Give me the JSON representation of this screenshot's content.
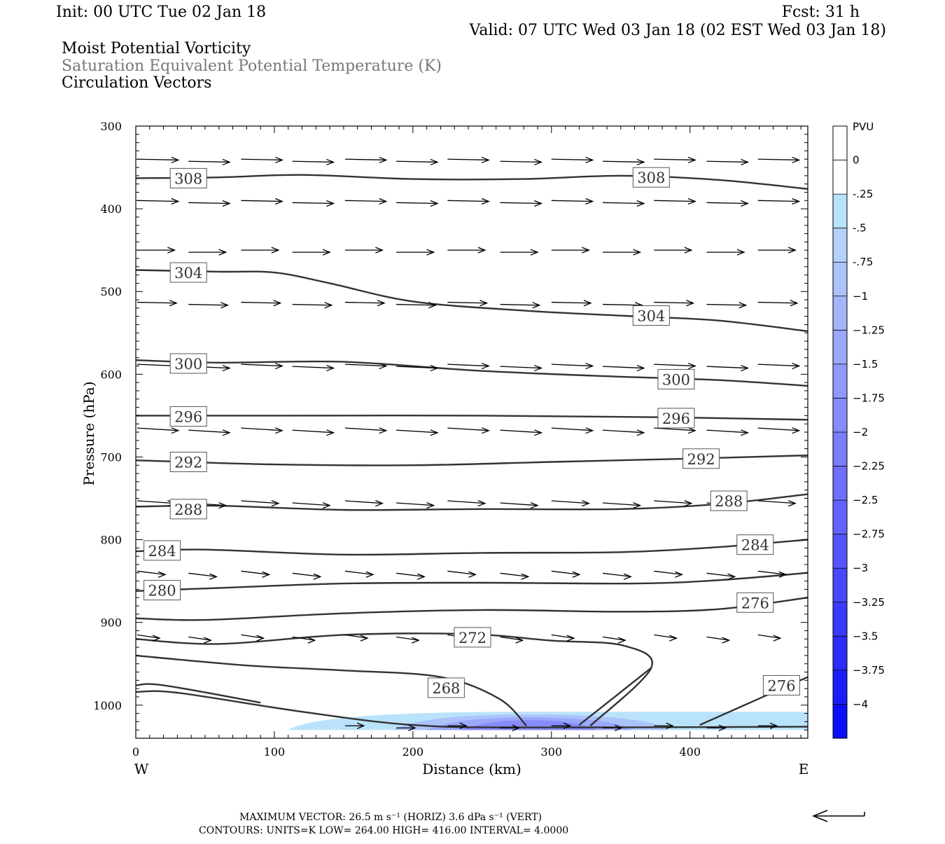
{
  "header": {
    "init": "Init: 00 UTC Tue 02 Jan 18",
    "fcst": "Fcst:   31 h",
    "valid": "Valid: 07 UTC Wed 03 Jan 18 (02 EST Wed 03 Jan 18)",
    "field1": "Moist Potential Vorticity",
    "field2": "Saturation Equivalent Potential Temperature (K)",
    "field3": "Circulation Vectors"
  },
  "footer": {
    "max_vector": "MAXIMUM VECTOR:  26.5 m s⁻¹ (HORIZ)          3.6 dPa s⁻¹ (VERT)",
    "contours": "CONTOURS:  UNITS=K  LOW=   264.00        HIGH=   416.00        INTERVAL=     4.0000"
  },
  "colorbar": {
    "unit": "PVU",
    "labels": [
      "0",
      "-.25",
      "-.5",
      "-.75",
      "−1",
      "−1.25",
      "−1.5",
      "−1.75",
      "−2",
      "−2.25",
      "−2.5",
      "−2.75",
      "−3",
      "−3.25",
      "−3.5",
      "−3.75",
      "−4"
    ],
    "colors": [
      "#ffffff",
      "#ffffff",
      "#b9e3fb",
      "#b4d2fb",
      "#abc2fb",
      "#a3b5fb",
      "#9aa7fb",
      "#9099fb",
      "#878bfb",
      "#7c7dfb",
      "#706efb",
      "#6462fb",
      "#5655fb",
      "#4848fb",
      "#393afb",
      "#2a2cfb",
      "#1a1dfb",
      "#0a0ffb"
    ]
  },
  "chart_data": {
    "type": "cross-section",
    "xlabel": "Distance (km)",
    "ylabel": "Pressure (hPa)",
    "xlim": [
      0,
      485
    ],
    "ylim": [
      1040,
      300
    ],
    "x_ticks": [
      "0",
      "100",
      "200",
      "300",
      "400"
    ],
    "y_ticks": [
      "300",
      "400",
      "500",
      "600",
      "700",
      "800",
      "900",
      "1000"
    ],
    "x_end_labels": {
      "left": "W",
      "right": "E"
    },
    "contours": [
      {
        "value": 308,
        "points": [
          [
            0,
            363
          ],
          [
            60,
            362
          ],
          [
            120,
            359
          ],
          [
            200,
            364
          ],
          [
            280,
            364
          ],
          [
            350,
            360
          ],
          [
            420,
            365
          ],
          [
            485,
            376
          ]
        ]
      },
      {
        "value": 304,
        "points": [
          [
            0,
            474
          ],
          [
            60,
            476
          ],
          [
            100,
            477
          ],
          [
            140,
            490
          ],
          [
            200,
            512
          ],
          [
            280,
            523
          ],
          [
            360,
            530
          ],
          [
            420,
            535
          ],
          [
            485,
            548
          ]
        ]
      },
      {
        "value": 300,
        "points": [
          [
            0,
            583
          ],
          [
            60,
            586
          ],
          [
            150,
            585
          ],
          [
            250,
            596
          ],
          [
            350,
            603
          ],
          [
            420,
            607
          ],
          [
            485,
            614
          ]
        ]
      },
      {
        "value": 296,
        "points": [
          [
            0,
            650
          ],
          [
            100,
            650
          ],
          [
            250,
            650
          ],
          [
            380,
            652
          ],
          [
            485,
            655
          ]
        ]
      },
      {
        "value": 292,
        "points": [
          [
            0,
            704
          ],
          [
            100,
            709
          ],
          [
            200,
            710
          ],
          [
            300,
            706
          ],
          [
            400,
            702
          ],
          [
            485,
            698
          ]
        ]
      },
      {
        "value": 288,
        "points": [
          [
            0,
            760
          ],
          [
            60,
            759
          ],
          [
            150,
            764
          ],
          [
            250,
            763
          ],
          [
            350,
            763
          ],
          [
            420,
            757
          ],
          [
            485,
            745
          ]
        ]
      },
      {
        "value": 284,
        "points": [
          [
            0,
            814
          ],
          [
            50,
            812
          ],
          [
            150,
            818
          ],
          [
            250,
            816
          ],
          [
            350,
            815
          ],
          [
            420,
            809
          ],
          [
            485,
            800
          ]
        ]
      },
      {
        "value": 280,
        "points": [
          [
            0,
            862
          ],
          [
            50,
            859
          ],
          [
            150,
            853
          ],
          [
            250,
            852
          ],
          [
            360,
            853
          ],
          [
            420,
            849
          ],
          [
            485,
            840
          ]
        ]
      },
      {
        "value": 276,
        "points": [
          [
            0,
            895
          ],
          [
            50,
            897
          ],
          [
            150,
            889
          ],
          [
            250,
            885
          ],
          [
            350,
            887
          ],
          [
            420,
            884
          ],
          [
            485,
            870
          ]
        ]
      },
      {
        "value": 272,
        "points": [
          [
            0,
            920
          ],
          [
            60,
            926
          ],
          [
            150,
            915
          ],
          [
            240,
            914
          ],
          [
            300,
            922
          ],
          [
            352,
            928
          ],
          [
            372,
            955
          ],
          [
            328,
            1025
          ]
        ]
      },
      {
        "value": 272,
        "points": [
          [
            372,
            955
          ],
          [
            320,
            1024
          ]
        ]
      },
      {
        "value": 268,
        "points": [
          [
            0,
            940
          ],
          [
            80,
            952
          ],
          [
            150,
            958
          ],
          [
            220,
            966
          ],
          [
            262,
            992
          ],
          [
            282,
            1025
          ]
        ]
      },
      {
        "value": 276,
        "points": [
          [
            407,
            1024
          ],
          [
            450,
            992
          ],
          [
            485,
            966
          ]
        ]
      },
      {
        "value": 264,
        "points": [
          [
            0,
            976
          ],
          [
            20,
            976
          ],
          [
            90,
            997
          ]
        ]
      },
      {
        "value": 264,
        "points": [
          [
            0,
            984
          ],
          [
            30,
            985
          ],
          [
            120,
            1008
          ],
          [
            200,
            1024
          ],
          [
            285,
            1027
          ],
          [
            485,
            1026
          ]
        ]
      }
    ],
    "contour_labels": [
      {
        "text": "308",
        "x": 38,
        "p": 363
      },
      {
        "text": "308",
        "x": 372,
        "p": 362
      },
      {
        "text": "304",
        "x": 38,
        "p": 477
      },
      {
        "text": "304",
        "x": 372,
        "p": 529
      },
      {
        "text": "300",
        "x": 38,
        "p": 587
      },
      {
        "text": "300",
        "x": 390,
        "p": 606
      },
      {
        "text": "296",
        "x": 38,
        "p": 651
      },
      {
        "text": "296",
        "x": 390,
        "p": 653
      },
      {
        "text": "292",
        "x": 38,
        "p": 706
      },
      {
        "text": "292",
        "x": 408,
        "p": 702
      },
      {
        "text": "288",
        "x": 38,
        "p": 763
      },
      {
        "text": "288",
        "x": 428,
        "p": 753
      },
      {
        "text": "284",
        "x": 19,
        "p": 813
      },
      {
        "text": "284",
        "x": 447,
        "p": 806
      },
      {
        "text": "280",
        "x": 19,
        "p": 861
      },
      {
        "text": "276",
        "x": 447,
        "p": 876
      },
      {
        "text": "272",
        "x": 243,
        "p": 918
      },
      {
        "text": "268",
        "x": 224,
        "p": 979
      },
      {
        "text": "276",
        "x": 466,
        "p": 976
      }
    ],
    "vector_rows": [
      {
        "p": 340,
        "xs": [
          0,
          37,
          75,
          112,
          150,
          187,
          224,
          262,
          299,
          336,
          373,
          411,
          448
        ],
        "len": 22,
        "tilt": 1
      },
      {
        "p": 390,
        "xs": [
          0,
          37,
          75,
          112,
          150,
          187,
          224,
          262,
          299,
          336,
          373,
          411,
          448
        ],
        "len": 22,
        "tilt": 1
      },
      {
        "p": 450,
        "xs": [
          0,
          37,
          75,
          112,
          150,
          187,
          224,
          262,
          299,
          336,
          373,
          411,
          448
        ],
        "len": 20,
        "tilt": 0
      },
      {
        "p": 513,
        "xs": [
          0,
          37,
          75,
          112,
          150,
          187,
          224,
          262,
          299,
          336,
          373,
          411,
          448
        ],
        "len": 21,
        "tilt": 1
      },
      {
        "p": 588,
        "xs": [
          0,
          37,
          75,
          112,
          150,
          187,
          224,
          262,
          299,
          336,
          373,
          411,
          448
        ],
        "len": 22,
        "tilt": 2
      },
      {
        "p": 665,
        "xs": [
          0,
          37,
          75,
          112,
          150,
          187,
          224,
          262,
          299,
          336,
          373,
          411,
          448
        ],
        "len": 22,
        "tilt": 3
      },
      {
        "p": 753,
        "xs": [
          0,
          37,
          75,
          112,
          150,
          187,
          224,
          262,
          299,
          336,
          373,
          411,
          448
        ],
        "len": 20,
        "tilt": 3
      },
      {
        "p": 838,
        "xs": [
          0,
          37,
          75,
          112,
          150,
          187,
          224,
          262,
          299,
          336,
          373,
          411,
          448
        ],
        "len": 15,
        "tilt": 4
      },
      {
        "p": 915,
        "xs": [
          0,
          37,
          75,
          112,
          150,
          187,
          224,
          262,
          299,
          336,
          373,
          411,
          448
        ],
        "len": 12,
        "tilt": 4
      },
      {
        "p": 1025,
        "xs": [
          150,
          187,
          224,
          262,
          299,
          336,
          373,
          411,
          448
        ],
        "len": 10,
        "tilt": 0
      }
    ],
    "pv_shading": {
      "x_range": [
        110,
        485
      ],
      "p_range": [
        1008,
        1030
      ],
      "min_pvu": -2.0
    }
  }
}
